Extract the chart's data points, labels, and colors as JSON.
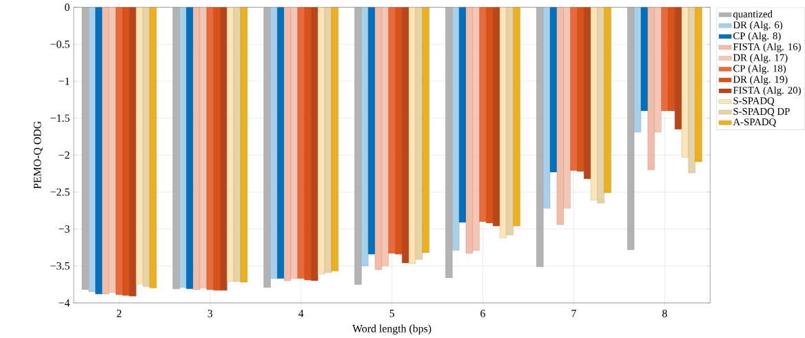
{
  "chart_data": {
    "type": "bar",
    "xlabel": "Word length (bps)",
    "ylabel": "PEMO-Q ODG",
    "categories": [
      "2",
      "3",
      "4",
      "5",
      "6",
      "7",
      "8"
    ],
    "series": [
      {
        "name": "quantized",
        "color": "#b3b3b3",
        "values": [
          -3.82,
          -3.81,
          -3.79,
          -3.75,
          -3.66,
          -3.51,
          -3.28
        ]
      },
      {
        "name": "DR (Alg. 6)",
        "color": "#a9d0ea",
        "values": [
          -3.85,
          -3.79,
          -3.67,
          -3.5,
          -3.29,
          -2.72,
          -1.69
        ]
      },
      {
        "name": "CP (Alg. 8)",
        "color": "#0072bd",
        "values": [
          -3.88,
          -3.81,
          -3.67,
          -3.34,
          -2.91,
          -2.23,
          -1.4
        ]
      },
      {
        "name": "FISTA (Alg. 16)",
        "color": "#f2bca8",
        "values": [
          -3.88,
          -3.82,
          -3.7,
          -3.55,
          -3.33,
          -2.94,
          -2.2
        ]
      },
      {
        "name": "DR (Alg. 17)",
        "color": "#f5c6b4",
        "values": [
          -3.86,
          -3.8,
          -3.67,
          -3.5,
          -3.29,
          -2.72,
          -1.69
        ]
      },
      {
        "name": "CP (Alg. 18)",
        "color": "#e8693a",
        "values": [
          -3.89,
          -3.82,
          -3.67,
          -3.33,
          -2.9,
          -2.21,
          -1.4
        ]
      },
      {
        "name": "DR (Alg. 19)",
        "color": "#d95319",
        "values": [
          -3.9,
          -3.83,
          -3.69,
          -3.34,
          -2.92,
          -2.22,
          -1.4
        ]
      },
      {
        "name": "FISTA (Alg. 20)",
        "color": "#b8461a",
        "values": [
          -3.91,
          -3.83,
          -3.7,
          -3.46,
          -2.96,
          -2.32,
          -1.65
        ]
      },
      {
        "name": "S-SPADQ",
        "color": "#fbe5b6",
        "values": [
          -3.75,
          -3.71,
          -3.61,
          -3.47,
          -3.12,
          -2.61,
          -2.03
        ]
      },
      {
        "name": "S-SPADQ DP",
        "color": "#e6d3a8",
        "values": [
          -3.78,
          -3.71,
          -3.59,
          -3.41,
          -3.08,
          -2.65,
          -2.24
        ]
      },
      {
        "name": "A-SPADQ",
        "color": "#edb120",
        "values": [
          -3.8,
          -3.72,
          -3.57,
          -3.32,
          -2.96,
          -2.51,
          -2.09
        ]
      }
    ],
    "ylim": [
      -4,
      0
    ],
    "yticks": [
      {
        "value": -4,
        "label": "−4"
      },
      {
        "value": -3.5,
        "label": "−3.5"
      },
      {
        "value": -3,
        "label": "−3"
      },
      {
        "value": -2.5,
        "label": "−2.5"
      },
      {
        "value": -2,
        "label": "−2"
      },
      {
        "value": -1.5,
        "label": "−1.5"
      },
      {
        "value": -1,
        "label": "−1"
      },
      {
        "value": -0.5,
        "label": "−0.5"
      },
      0
    ],
    "grid": true,
    "legend": "right"
  }
}
